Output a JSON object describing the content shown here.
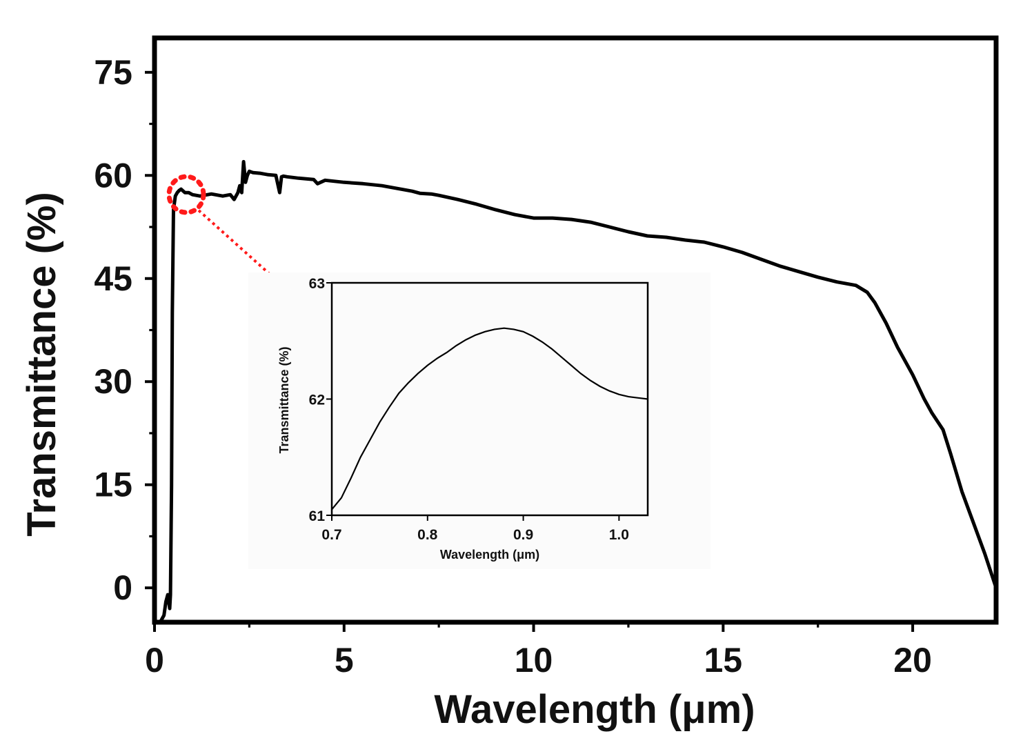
{
  "chart_data": [
    {
      "type": "line",
      "title": "",
      "xlabel": "Wavelength (μm)",
      "ylabel": "Transmittance (%)",
      "xlim": [
        0,
        22.2
      ],
      "ylim": [
        -5,
        80
      ],
      "xticks": [
        0,
        5,
        10,
        15,
        20
      ],
      "xtick_labels": [
        "0",
        "5",
        "10",
        "15",
        "20"
      ],
      "yticks": [
        0,
        15,
        30,
        45,
        60,
        75
      ],
      "ytick_labels": [
        "0",
        "15",
        "30",
        "45",
        "60",
        "75"
      ],
      "grid": false,
      "color": "#000000",
      "series": [
        {
          "name": "Transmittance",
          "x": [
            0.15,
            0.25,
            0.3,
            0.35,
            0.4,
            0.42,
            0.45,
            0.47,
            0.5,
            0.55,
            0.6,
            0.65,
            0.7,
            0.8,
            0.9,
            1.0,
            1.2,
            1.5,
            1.8,
            2.0,
            2.1,
            2.2,
            2.25,
            2.3,
            2.35,
            2.4,
            2.45,
            2.5,
            2.6,
            2.8,
            3.0,
            3.2,
            3.3,
            3.35,
            3.4,
            3.5,
            3.8,
            4.0,
            4.2,
            4.3,
            4.5,
            5.0,
            5.5,
            6.0,
            6.5,
            6.8,
            7.0,
            7.3,
            7.5,
            8.0,
            8.5,
            9.0,
            9.5,
            10.0,
            10.5,
            11.0,
            11.5,
            12.0,
            12.5,
            13.0,
            13.5,
            14.0,
            14.5,
            15.0,
            15.5,
            16.0,
            16.5,
            17.0,
            17.5,
            18.0,
            18.5,
            18.8,
            19.0,
            19.3,
            19.6,
            20.0,
            20.3,
            20.5,
            20.8,
            21.0,
            21.3,
            21.6,
            21.9,
            22.2
          ],
          "y": [
            -5,
            -4,
            -2,
            -1,
            -3,
            -1,
            15,
            40,
            55,
            57,
            57.5,
            57.8,
            58,
            57.5,
            57.5,
            57.2,
            57.0,
            57.3,
            57.0,
            57.2,
            56.5,
            57.5,
            58.5,
            57.5,
            62,
            59,
            60,
            60.6,
            60.4,
            60.3,
            60.1,
            60.0,
            57.5,
            59.8,
            59.9,
            59.8,
            59.6,
            59.5,
            59.4,
            58.8,
            59.3,
            59.0,
            58.8,
            58.5,
            58.0,
            57.7,
            57.4,
            57.3,
            57.1,
            56.5,
            55.8,
            55.0,
            54.3,
            53.8,
            53.8,
            53.6,
            53.2,
            52.5,
            51.8,
            51.2,
            51.0,
            50.6,
            50.3,
            49.6,
            48.8,
            47.8,
            46.8,
            46.0,
            45.2,
            44.5,
            44.0,
            43.0,
            41.5,
            38.5,
            35.0,
            31.0,
            27.5,
            25.5,
            23.0,
            19.5,
            14.0,
            9.5,
            5.0,
            0
          ]
        }
      ]
    },
    {
      "type": "line",
      "title": "",
      "xlabel": "Wavelength (μm)",
      "ylabel": "Transmittance (%)",
      "xlim": [
        0.7,
        1.03
      ],
      "ylim": [
        61,
        63
      ],
      "xticks": [
        0.7,
        0.8,
        0.9,
        1.0
      ],
      "xtick_labels": [
        "0.7",
        "0.8",
        "0.9",
        "1.0"
      ],
      "yticks": [
        61,
        62,
        63
      ],
      "ytick_labels": [
        "61",
        "62",
        "63"
      ],
      "grid": false,
      "series": [
        {
          "name": "Transmittance (inset)",
          "x": [
            0.7,
            0.71,
            0.72,
            0.73,
            0.74,
            0.75,
            0.76,
            0.77,
            0.78,
            0.79,
            0.8,
            0.81,
            0.82,
            0.83,
            0.84,
            0.85,
            0.86,
            0.87,
            0.88,
            0.89,
            0.9,
            0.91,
            0.92,
            0.93,
            0.94,
            0.95,
            0.96,
            0.97,
            0.98,
            0.99,
            1.0,
            1.01,
            1.02,
            1.03
          ],
          "y": [
            61.05,
            61.15,
            61.32,
            61.5,
            61.65,
            61.8,
            61.93,
            62.05,
            62.14,
            62.22,
            62.29,
            62.35,
            62.4,
            62.46,
            62.51,
            62.55,
            62.58,
            62.6,
            62.61,
            62.6,
            62.58,
            62.54,
            62.49,
            62.43,
            62.36,
            62.29,
            62.22,
            62.16,
            62.11,
            62.07,
            62.04,
            62.02,
            62.01,
            62.0
          ]
        }
      ]
    }
  ]
}
